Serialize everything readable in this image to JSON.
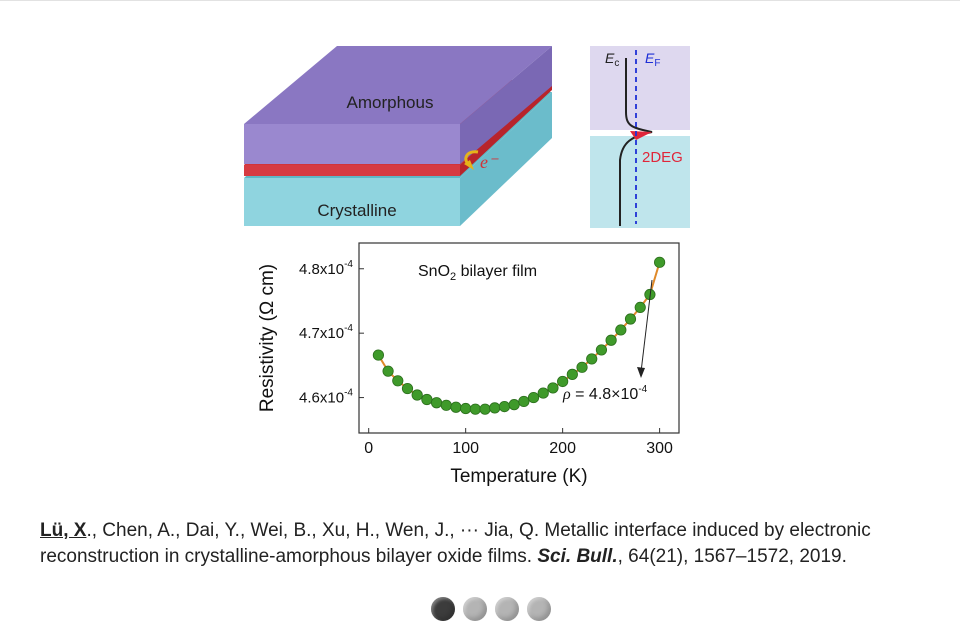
{
  "figure": {
    "schematic": {
      "top_layer_label": "Amorphous",
      "bottom_layer_label": "Crystalline",
      "electron_label": "e⁻",
      "colors": {
        "amorphous": "#8e7cc3",
        "interface": "#d0343a",
        "crystalline": "#7ccddc"
      }
    },
    "band_diagram": {
      "ec_label": "E",
      "ec_sub": "c",
      "ef_label": "E",
      "ef_sub": "F",
      "twodeg_label": "2DEG",
      "colors": {
        "ef_line": "#1e2fd6",
        "twodeg": "#e0263a"
      }
    }
  },
  "chart_data": {
    "type": "scatter",
    "title": "SnO",
    "title_sub": "2",
    "title_suffix": " bilayer film",
    "xlabel": "Temperature (K)",
    "ylabel": "Resistivity (Ω cm)",
    "xlim": [
      -10,
      320
    ],
    "ylim": [
      4.545,
      4.84
    ],
    "xticks": [
      0,
      100,
      200,
      300
    ],
    "xtick_labels": [
      "0",
      "100",
      "200",
      "300"
    ],
    "yticks": [
      4.6,
      4.7,
      4.8
    ],
    "ytick_labels": [
      {
        "base": "4.6x10",
        "exp": "-4"
      },
      {
        "base": "4.7x10",
        "exp": "-4"
      },
      {
        "base": "4.8x10",
        "exp": "-4"
      }
    ],
    "annotation": {
      "rho": "ρ",
      "text": " = 4.8×10",
      "exp": "-4"
    },
    "marker_color": "#3f9a2a",
    "fit_color": "#e08a2a",
    "x": [
      10,
      20,
      30,
      40,
      50,
      60,
      70,
      80,
      90,
      100,
      110,
      120,
      130,
      140,
      150,
      160,
      170,
      180,
      190,
      200,
      210,
      220,
      230,
      240,
      250,
      260,
      270,
      280,
      290,
      300
    ],
    "y": [
      4.666,
      4.641,
      4.626,
      4.614,
      4.604,
      4.597,
      4.592,
      4.588,
      4.585,
      4.583,
      4.582,
      4.582,
      4.584,
      4.586,
      4.589,
      4.594,
      4.6,
      4.607,
      4.615,
      4.625,
      4.636,
      4.647,
      4.66,
      4.674,
      4.689,
      4.705,
      4.722,
      4.74,
      4.76,
      4.81
    ]
  },
  "citation": {
    "author_self": "Lü, X",
    "authors_rest": "., Chen, A., Dai, Y., Wei, B., Xu, H., Wen, J., ··· Jia, Q. Metallic interface induced by electronic reconstruction in crystalline-amorphous bilayer oxide films. ",
    "journal": "Sci. Bull.",
    "details": ", 64(21), 1567–1572, 2019."
  },
  "pager": {
    "slides": [
      {
        "label": "Slide 1",
        "active": true
      },
      {
        "label": "Slide 2",
        "active": false
      },
      {
        "label": "Slide 3",
        "active": false
      },
      {
        "label": "Slide 4",
        "active": false
      }
    ]
  }
}
